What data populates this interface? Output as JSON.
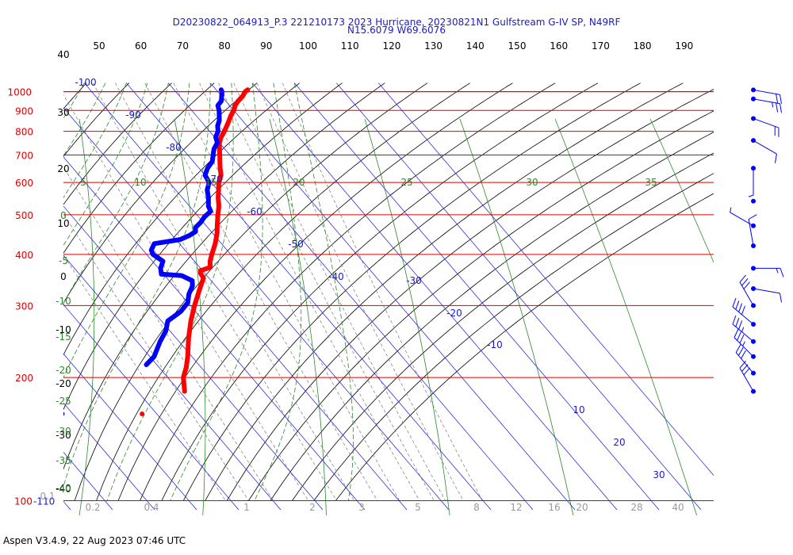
{
  "chart_data": {
    "type": "line",
    "title": "D20230822_064913_P.3 221210173 2023 Hurricane, 20230821N1 Gulfstream G-IV SP, N49RF",
    "subtitle": "N15.6079 W69.6076",
    "footer": "Aspen V3.4.9, 22 Aug 2023  07:46 UTC",
    "pressure_labels": [
      {
        "p": 100,
        "label": "100"
      },
      {
        "p": 200,
        "label": "200"
      },
      {
        "p": 300,
        "label": "300"
      },
      {
        "p": 400,
        "label": "400"
      },
      {
        "p": 500,
        "label": "500"
      },
      {
        "p": 600,
        "label": "600"
      },
      {
        "p": 700,
        "label": "700"
      },
      {
        "p": 800,
        "label": "800"
      },
      {
        "p": 900,
        "label": "900"
      },
      {
        "p": 1000,
        "label": "1000"
      }
    ],
    "top_isotherm_labels": [
      "-110",
      "-100",
      "-90",
      "-80",
      "-70",
      "-60",
      "-50",
      "-40",
      "-30",
      "-20",
      "-10",
      "0",
      "10",
      "20",
      "30",
      "40"
    ],
    "top_axis_labels": [
      "40",
      "50",
      "60",
      "70",
      "80",
      "90",
      "100",
      "110",
      "120",
      "130",
      "140",
      "150",
      "160",
      "170",
      "180",
      "190"
    ],
    "height_labels": [
      "40",
      "30",
      "20",
      "10",
      "0",
      "-10",
      "-20",
      "-30",
      "-40"
    ],
    "interior_isotherm_labels": [
      "-100",
      "-90",
      "-80",
      "-70",
      "-60",
      "-50",
      "-40",
      "-30",
      "-20",
      "-10",
      "10",
      "20",
      "30"
    ],
    "theta_e_labels": [
      "5",
      "10",
      "15",
      "20",
      "25",
      "30",
      "35"
    ],
    "moist_adiabat_labels": [
      "0",
      "-5",
      "-10",
      "-15",
      "-20",
      "-25",
      "-30",
      "-35",
      "-40"
    ],
    "mixing_ratio_labels": [
      "0.1",
      "0.2",
      "0.4",
      "1",
      "2",
      "3",
      "5",
      "8",
      "12",
      "16",
      "20",
      "28",
      "40"
    ],
    "temperature": {
      "name": "Temperature",
      "color": "#ff0000",
      "points": [
        {
          "p": 1011,
          "t": 27.5
        },
        {
          "p": 1000,
          "t": 26.5
        },
        {
          "p": 975,
          "t": 25.0
        },
        {
          "p": 950,
          "t": 23.0
        },
        {
          "p": 925,
          "t": 21.3
        },
        {
          "p": 900,
          "t": 20.0
        },
        {
          "p": 875,
          "t": 18.3
        },
        {
          "p": 850,
          "t": 16.8
        },
        {
          "p": 825,
          "t": 15.2
        },
        {
          "p": 800,
          "t": 13.5
        },
        {
          "p": 775,
          "t": 11.6
        },
        {
          "p": 750,
          "t": 10.0
        },
        {
          "p": 725,
          "t": 8.8
        },
        {
          "p": 700,
          "t": 7.6
        },
        {
          "p": 675,
          "t": 6.3
        },
        {
          "p": 650,
          "t": 5.0
        },
        {
          "p": 625,
          "t": 3.8
        },
        {
          "p": 600,
          "t": 1.8
        },
        {
          "p": 575,
          "t": 0.2
        },
        {
          "p": 550,
          "t": -1.5
        },
        {
          "p": 525,
          "t": -3.0
        },
        {
          "p": 500,
          "t": -5.0
        },
        {
          "p": 475,
          "t": -7.0
        },
        {
          "p": 450,
          "t": -9.0
        },
        {
          "p": 425,
          "t": -11.5
        },
        {
          "p": 400,
          "t": -14.5
        },
        {
          "p": 385,
          "t": -16.3
        },
        {
          "p": 372,
          "t": -17.5
        },
        {
          "p": 365,
          "t": -20.5
        },
        {
          "p": 360,
          "t": -21.0
        },
        {
          "p": 350,
          "t": -21.3
        },
        {
          "p": 330,
          "t": -24.3
        },
        {
          "p": 300,
          "t": -29.0
        },
        {
          "p": 275,
          "t": -33.0
        },
        {
          "p": 250,
          "t": -37.0
        },
        {
          "p": 225,
          "t": -41.0
        },
        {
          "p": 212,
          "t": -43.5
        },
        {
          "p": 200,
          "t": -46.3
        },
        {
          "p": 185,
          "t": -48.8
        }
      ]
    },
    "dewpoint": {
      "name": "Dew Point",
      "color": "#0000ff",
      "points": [
        {
          "p": 1011,
          "t": 21.2
        },
        {
          "p": 1000,
          "t": 21.0
        },
        {
          "p": 975,
          "t": 20.0
        },
        {
          "p": 950,
          "t": 19.0
        },
        {
          "p": 925,
          "t": 17.2
        },
        {
          "p": 900,
          "t": 16.5
        },
        {
          "p": 875,
          "t": 15.5
        },
        {
          "p": 850,
          "t": 14.5
        },
        {
          "p": 825,
          "t": 13.0
        },
        {
          "p": 800,
          "t": 12.0
        },
        {
          "p": 775,
          "t": 10.3
        },
        {
          "p": 750,
          "t": 9.5
        },
        {
          "p": 725,
          "t": 7.5
        },
        {
          "p": 700,
          "t": 6.0
        },
        {
          "p": 675,
          "t": 4.5
        },
        {
          "p": 650,
          "t": 2.0
        },
        {
          "p": 625,
          "t": 0.0
        },
        {
          "p": 600,
          "t": -0.5
        },
        {
          "p": 575,
          "t": -2.5
        },
        {
          "p": 550,
          "t": -3.8
        },
        {
          "p": 525,
          "t": -5.5
        },
        {
          "p": 510,
          "t": -6.0
        },
        {
          "p": 495,
          "t": -8.5
        },
        {
          "p": 480,
          "t": -10.5
        },
        {
          "p": 465,
          "t": -13.0
        },
        {
          "p": 455,
          "t": -13.7
        },
        {
          "p": 445,
          "t": -16.0
        },
        {
          "p": 435,
          "t": -19.0
        },
        {
          "p": 425,
          "t": -26.0
        },
        {
          "p": 410,
          "t": -28.0
        },
        {
          "p": 400,
          "t": -28.5
        },
        {
          "p": 385,
          "t": -27.5
        },
        {
          "p": 370,
          "t": -29.5
        },
        {
          "p": 358,
          "t": -30.5
        },
        {
          "p": 355,
          "t": -26.0
        },
        {
          "p": 345,
          "t": -24.5
        },
        {
          "p": 335,
          "t": -25.5
        },
        {
          "p": 320,
          "t": -28.0
        },
        {
          "p": 305,
          "t": -30.0
        },
        {
          "p": 290,
          "t": -33.5
        },
        {
          "p": 275,
          "t": -38.5
        },
        {
          "p": 260,
          "t": -41.0
        },
        {
          "p": 245,
          "t": -44.5
        },
        {
          "p": 225,
          "t": -49.0
        },
        {
          "p": 215,
          "t": -52.5
        }
      ]
    },
    "markers": [
      {
        "p": 163,
        "t": -63.5,
        "color": "#ff0000"
      },
      {
        "p": 163,
        "t": -82.5,
        "color": "#0000ff"
      }
    ],
    "wind_barbs": [
      {
        "p": 185,
        "dir": 330,
        "spd": 30
      },
      {
        "p": 205,
        "dir": 320,
        "spd": 30
      },
      {
        "p": 225,
        "dir": 315,
        "spd": 35
      },
      {
        "p": 245,
        "dir": 310,
        "spd": 35
      },
      {
        "p": 270,
        "dir": 310,
        "spd": 40
      },
      {
        "p": 300,
        "dir": 330,
        "spd": 30
      },
      {
        "p": 330,
        "dir": 100,
        "spd": 10
      },
      {
        "p": 370,
        "dir": 90,
        "spd": 15
      },
      {
        "p": 420,
        "dir": 350,
        "spd": 10
      },
      {
        "p": 470,
        "dir": 300,
        "spd": 5
      },
      {
        "p": 540,
        "dir": 0,
        "spd": 0
      },
      {
        "p": 650,
        "dir": 180,
        "spd": 5
      },
      {
        "p": 760,
        "dir": 120,
        "spd": 10
      },
      {
        "p": 860,
        "dir": 110,
        "spd": 20
      },
      {
        "p": 960,
        "dir": 100,
        "spd": 25
      },
      {
        "p": 1010,
        "dir": 100,
        "spd": 20
      }
    ]
  }
}
